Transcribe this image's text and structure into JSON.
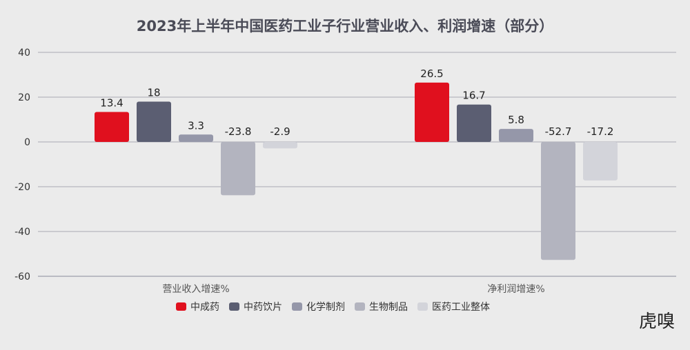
{
  "chart_data": {
    "type": "bar",
    "title": "2023年上半年中国医药工业子行业营业收入、利润增速（部分）",
    "categories": [
      "营业收入增速%",
      "净利润增速%"
    ],
    "series": [
      {
        "name": "中成药",
        "values": [
          13.4,
          26.5
        ],
        "color": "#e0101e"
      },
      {
        "name": "中药饮片",
        "values": [
          18,
          16.7
        ],
        "color": "#5b5e72"
      },
      {
        "name": "化学制剂",
        "values": [
          3.3,
          5.8
        ],
        "color": "#9597a9"
      },
      {
        "name": "生物制品",
        "values": [
          -23.8,
          -52.7
        ],
        "color": "#b3b4bf"
      },
      {
        "name": "医药工业整体",
        "values": [
          -2.9,
          -17.2
        ],
        "color": "#d3d4da"
      }
    ],
    "data_labels": [
      [
        "13.4",
        "26.5"
      ],
      [
        "18",
        "16.7"
      ],
      [
        "3.3",
        "5.8"
      ],
      [
        "-23.8",
        "-52.7"
      ],
      [
        "-2.9",
        "-17.2"
      ]
    ],
    "yticks": [
      "40",
      "20",
      "0",
      "-20",
      "-40",
      "-60"
    ],
    "ylim": [
      -60,
      40
    ],
    "grid": true,
    "legend_position": "bottom",
    "xlabel": "",
    "ylabel": ""
  },
  "watermark": "虎嗅"
}
